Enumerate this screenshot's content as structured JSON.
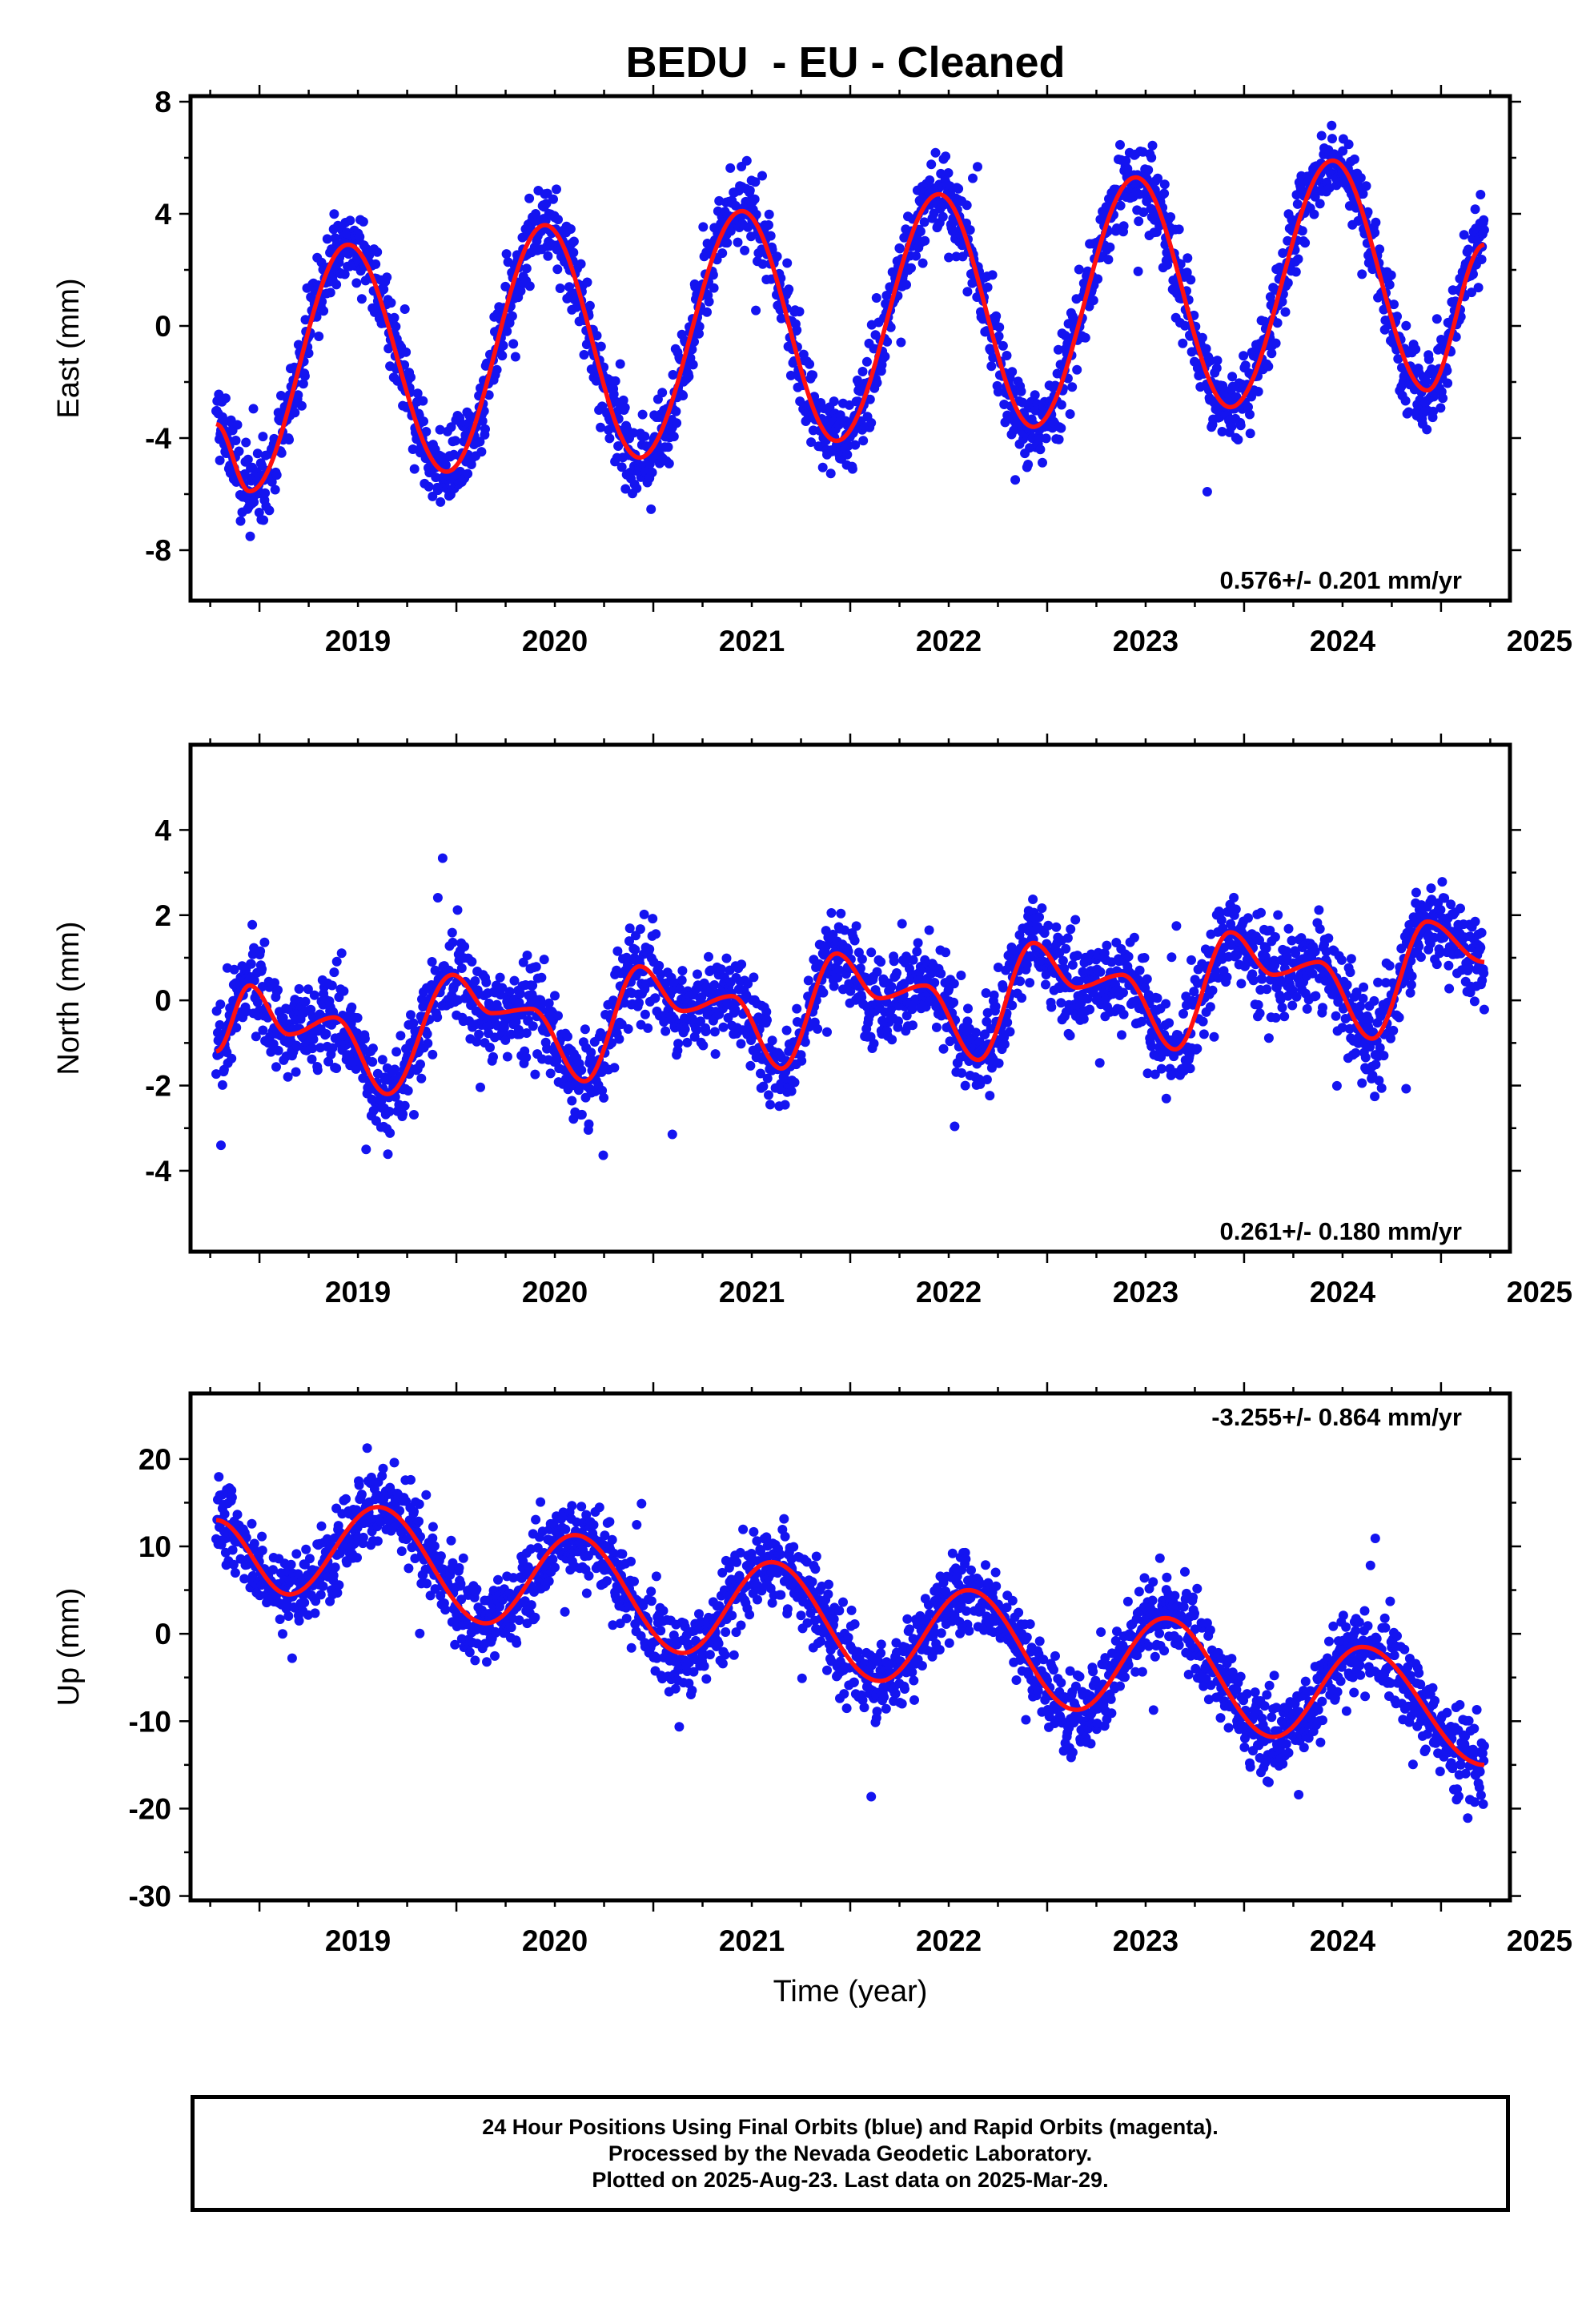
{
  "title": "BEDU  - EU - Cleaned",
  "colors": {
    "points": "#1414f0",
    "model": "#ff1010",
    "frame": "#000000",
    "background": "#ffffff"
  },
  "footer": {
    "line1": "24 Hour Positions Using Final Orbits (blue) and Rapid Orbits (magenta).",
    "line2": "Processed by the Nevada Geodetic Laboratory.",
    "line3": "Plotted on 2025-Aug-23. Last data on 2025-Mar-29."
  },
  "chart_data": [
    {
      "type": "scatter",
      "ylabel": "East (mm)",
      "xlabel": "",
      "rate_label": "0.576+/- 0.201 mm/yr",
      "xlim": [
        2018.65,
        2025.35
      ],
      "ylim": [
        -9.8,
        8.2
      ],
      "yticks": [
        -8,
        -4,
        0,
        4,
        8
      ],
      "xticks": [
        2019,
        2020,
        2021,
        2022,
        2023,
        2024,
        2025
      ],
      "grid": false,
      "model": {
        "trend_mm_per_yr": 0.576,
        "x": [
          2018.78,
          2018.95,
          2019.45,
          2019.95,
          2020.45,
          2020.93,
          2021.45,
          2021.93,
          2022.45,
          2022.93,
          2023.45,
          2023.93,
          2024.45,
          2024.93,
          2025.22
        ],
        "y": [
          -3.5,
          -5.9,
          2.9,
          -5.2,
          3.6,
          -4.7,
          4.1,
          -4.1,
          4.7,
          -3.6,
          5.3,
          -2.9,
          5.9,
          -2.3,
          2.9
        ]
      },
      "points": {
        "x_start": 2018.78,
        "x_end": 2025.22,
        "x_step": 0.0027,
        "phase_peak": 0.45,
        "amplitude": 4.1,
        "offset": -1.1,
        "trend": 0.576,
        "scatter": 1.3
      }
    },
    {
      "type": "scatter",
      "ylabel": "North (mm)",
      "xlabel": "",
      "rate_label": "0.261+/- 0.180 mm/yr",
      "xlim": [
        2018.65,
        2025.35
      ],
      "ylim": [
        -5.9,
        6.0
      ],
      "yticks": [
        -4,
        -2,
        0,
        2,
        4
      ],
      "xticks": [
        2019,
        2020,
        2021,
        2022,
        2023,
        2024,
        2025
      ],
      "grid": false,
      "model": {
        "trend_mm_per_yr": 0.261,
        "x": [
          2018.78,
          2018.95,
          2019.15,
          2019.38,
          2019.65,
          2019.98,
          2020.18,
          2020.38,
          2020.65,
          2020.93,
          2021.15,
          2021.4,
          2021.65,
          2021.93,
          2022.15,
          2022.38,
          2022.65,
          2022.93,
          2023.15,
          2023.38,
          2023.65,
          2023.93,
          2024.15,
          2024.38,
          2024.65,
          2024.93,
          2025.22
        ],
        "y": [
          -1.2,
          0.35,
          -0.8,
          -0.4,
          -2.2,
          0.6,
          -0.3,
          -0.2,
          -1.9,
          0.8,
          -0.25,
          0.1,
          -1.6,
          1.1,
          0.05,
          0.35,
          -1.4,
          1.35,
          0.3,
          0.6,
          -1.15,
          1.6,
          0.6,
          0.9,
          -0.9,
          1.85,
          0.9
        ]
      },
      "points": {
        "x_start": 2018.78,
        "x_end": 2025.22,
        "x_step": 0.0027,
        "phase_peak": 0.95,
        "amplitude": 1.2,
        "offset": -0.95,
        "trend": 0.261,
        "scatter": 0.95
      }
    },
    {
      "type": "scatter",
      "ylabel": "Up (mm)",
      "xlabel": "Time (year)",
      "rate_label": "-3.255+/- 0.864 mm/yr",
      "xlim": [
        2018.65,
        2025.35
      ],
      "ylim": [
        -30.5,
        27.5
      ],
      "yticks": [
        -30,
        -20,
        -10,
        0,
        10,
        20
      ],
      "xticks": [
        2019,
        2020,
        2021,
        2022,
        2023,
        2024,
        2025
      ],
      "grid": false,
      "model": {
        "trend_mm_per_yr": -3.255,
        "x": [
          2018.78,
          2019.15,
          2019.6,
          2020.15,
          2020.6,
          2021.15,
          2021.6,
          2022.15,
          2022.6,
          2023.15,
          2023.6,
          2024.15,
          2024.6,
          2025.22
        ],
        "y": [
          13.0,
          4.5,
          14.5,
          1.2,
          11.3,
          -2.2,
          8.2,
          -5.4,
          5.0,
          -8.7,
          1.8,
          -11.8,
          -1.5,
          -15.0
        ]
      },
      "points": {
        "x_start": 2018.78,
        "x_end": 2025.22,
        "x_step": 0.0027,
        "phase_peak": 0.6,
        "amplitude": 5.5,
        "offset": 9.5,
        "trend": -3.255,
        "scatter": 4.2
      }
    }
  ]
}
